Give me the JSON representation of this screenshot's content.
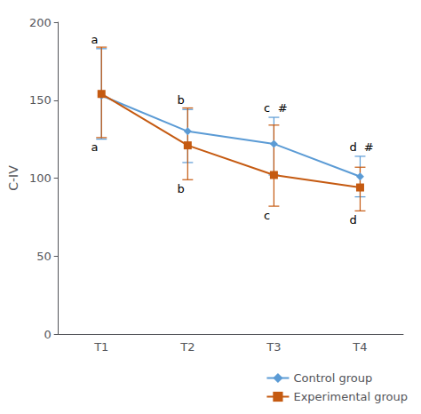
{
  "chart_data": {
    "type": "line",
    "ylabel": "C-IV",
    "categories": [
      "T1",
      "T2",
      "T3",
      "T4"
    ],
    "series": [
      {
        "name": "Control group",
        "color": "#5B9BD5",
        "marker": "diamond",
        "values": [
          153,
          130,
          122,
          101
        ],
        "errors_lower": [
          28,
          20,
          20,
          13
        ],
        "errors_upper": [
          30,
          14,
          17,
          13
        ],
        "annotations": [
          [
            "a"
          ],
          [
            "b"
          ],
          [
            "c",
            "#"
          ],
          [
            "d",
            "#"
          ]
        ]
      },
      {
        "name": "Experimental group",
        "color": "#C55A11",
        "marker": "square",
        "values": [
          154,
          121,
          102,
          94
        ],
        "errors_lower": [
          28,
          22,
          20,
          15
        ],
        "errors_upper": [
          30,
          24,
          32,
          13
        ],
        "annotations": [
          [
            "a"
          ],
          [
            "b"
          ],
          [
            "c"
          ],
          [
            "d"
          ]
        ]
      }
    ],
    "ylim": [
      0,
      200
    ],
    "yticks": [
      0,
      50,
      100,
      150,
      200
    ],
    "grid": false,
    "legend": "lower right"
  }
}
